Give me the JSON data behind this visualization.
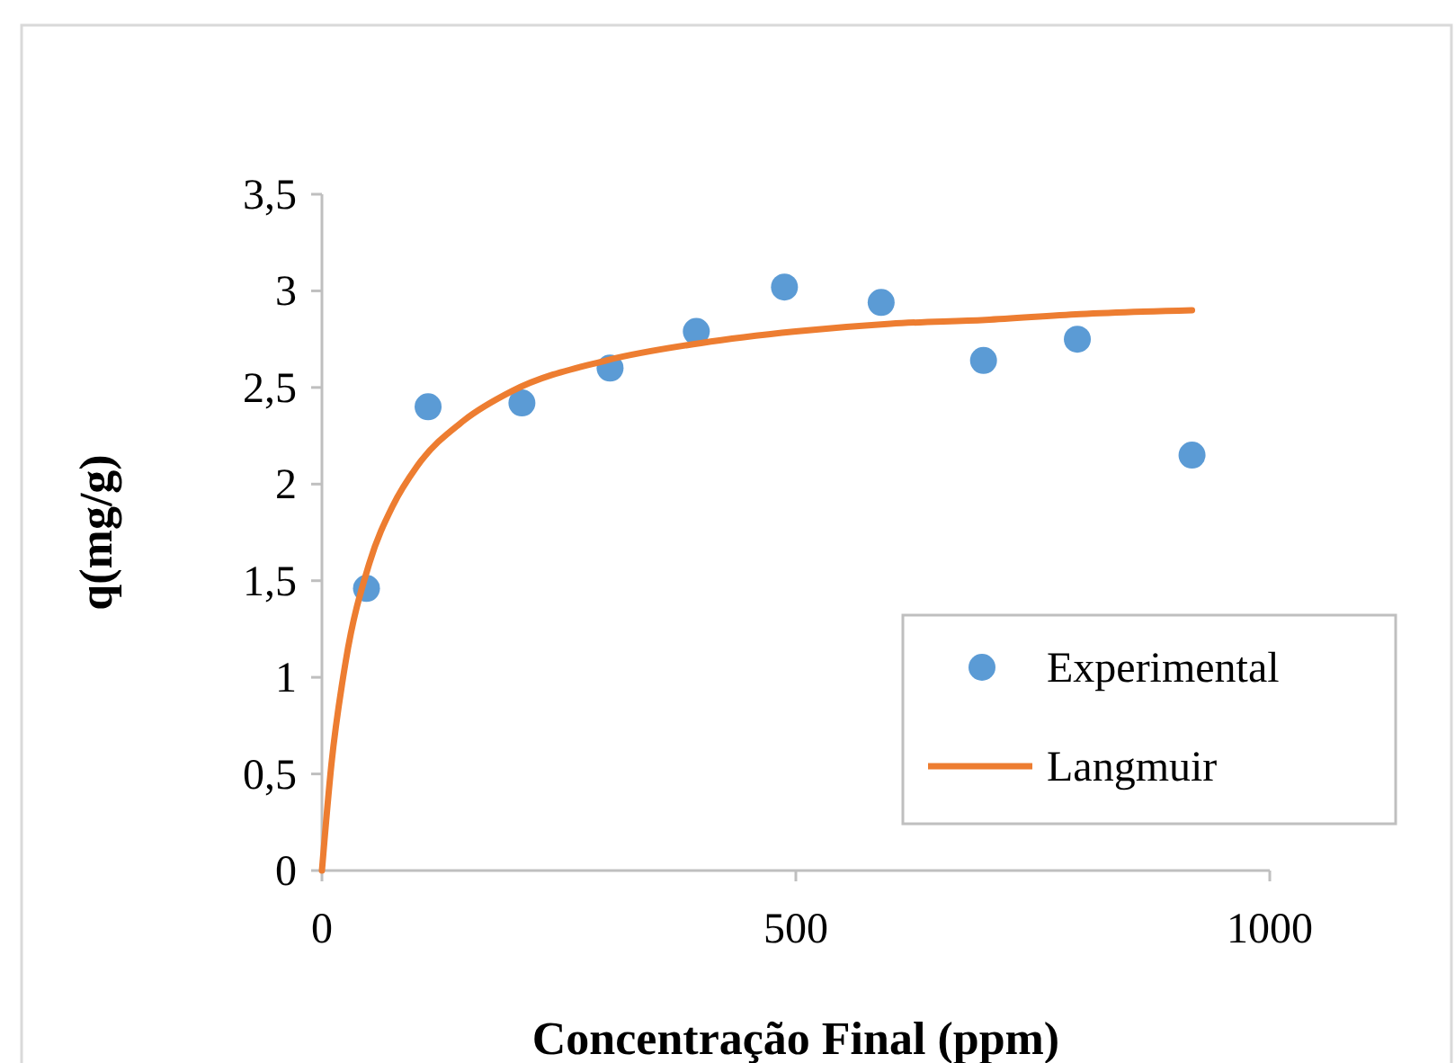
{
  "chart_data": {
    "type": "scatter",
    "xlabel": "Concentração Final (ppm)",
    "ylabel": "q(mg/g)",
    "xlim": [
      0,
      1000
    ],
    "xticks": [
      0,
      500,
      1000
    ],
    "ylim": [
      0,
      3.5
    ],
    "yticks": [
      0,
      {
        "value": 0.5,
        "label": "0,5"
      },
      1,
      {
        "value": 1.5,
        "label": "1,5"
      },
      2,
      {
        "value": 2.5,
        "label": "2,5"
      },
      3,
      {
        "value": 3.5,
        "label": "3,5"
      }
    ],
    "grid": false,
    "legend": "bottom right",
    "marker": "circle",
    "series": [
      {
        "name": "Experimental",
        "color": "#5b9bd5",
        "x": [
          47,
          112,
          211,
          304,
          395,
          488,
          590,
          698,
          797,
          918
        ],
        "values": [
          1.46,
          2.4,
          2.42,
          2.6,
          2.79,
          3.02,
          2.94,
          2.64,
          2.75,
          2.15
        ]
      },
      {
        "name": "Langmuir",
        "type": "line",
        "marker": "none",
        "line_style": "solid",
        "color": "#ed7d31",
        "x": [
          0,
          10,
          25,
          50,
          75,
          100,
          150,
          200,
          300,
          400,
          500,
          600,
          700,
          800,
          918
        ],
        "values": [
          0,
          0.55,
          1.08,
          1.59,
          1.89,
          2.09,
          2.33,
          2.48,
          2.64,
          2.73,
          2.79,
          2.83,
          2.85,
          2.88,
          2.9
        ]
      }
    ]
  }
}
